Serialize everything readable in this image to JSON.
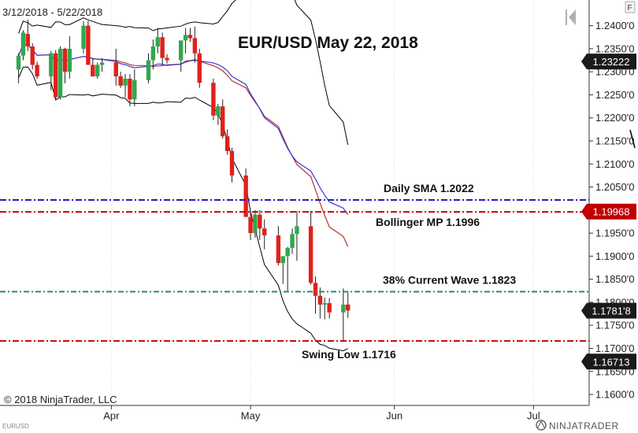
{
  "date_range": "3/12/2018 - 5/22/2018",
  "title": "EUR/USD May 22, 2018",
  "copyright": "© 2018 NinjaTrader, LLC",
  "instrument": "EURUSD",
  "brand": "NINJATRADER",
  "y_ticks": [
    "1.2400'0",
    "1.2350'0",
    "1.2300'0",
    "1.2250'0",
    "1.2200'0",
    "1.2150'0",
    "1.2100'0",
    "1.2050'0",
    "1.2000'0",
    "1.1950'0",
    "1.1900'0",
    "1.1850'0",
    "1.1800'0",
    "1.1750'0",
    "1.1700'0",
    "1.1650'0",
    "1.1600'0"
  ],
  "x_ticks": [
    "Apr",
    "May",
    "Jun",
    "Jul"
  ],
  "price_markers": [
    {
      "label": "1.23222",
      "value": 1.23222,
      "bg": "#1a1a1a"
    },
    {
      "label": "1.19968",
      "value": 1.19968,
      "bg": "#c00000"
    },
    {
      "label": "1.1781'8",
      "value": 1.17818,
      "bg": "#1a1a1a"
    },
    {
      "label": "1.16713",
      "value": 1.16713,
      "bg": "#1a1a1a"
    }
  ],
  "levels": [
    {
      "label": "Daily SMA 1.2022",
      "value": 1.2022,
      "color": "#1f1fb4"
    },
    {
      "label": "Bollinger MP 1.1996",
      "value": 1.1996,
      "color": "#cc0000"
    },
    {
      "label": "38% Current Wave 1.1823",
      "value": 1.1823,
      "color": "#2e8b57"
    },
    {
      "label": "Swing Low 1.1716",
      "value": 1.1716,
      "color": "#cc0000"
    }
  ],
  "chart_data": {
    "type": "candlestick",
    "x": [
      "2018-03-12",
      "2018-03-13",
      "2018-03-14",
      "2018-03-15",
      "2018-03-16",
      "2018-03-19",
      "2018-03-20",
      "2018-03-21",
      "2018-03-22",
      "2018-03-23",
      "2018-03-26",
      "2018-03-27",
      "2018-03-28",
      "2018-03-29",
      "2018-03-30",
      "2018-04-02",
      "2018-04-03",
      "2018-04-04",
      "2018-04-05",
      "2018-04-06",
      "2018-04-09",
      "2018-04-10",
      "2018-04-11",
      "2018-04-12",
      "2018-04-13",
      "2018-04-16",
      "2018-04-17",
      "2018-04-18",
      "2018-04-19",
      "2018-04-20",
      "2018-04-23",
      "2018-04-24",
      "2018-04-25",
      "2018-04-26",
      "2018-04-27",
      "2018-04-30",
      "2018-05-01",
      "2018-05-02",
      "2018-05-03",
      "2018-05-04",
      "2018-05-07",
      "2018-05-08",
      "2018-05-09",
      "2018-05-10",
      "2018-05-11",
      "2018-05-14",
      "2018-05-15",
      "2018-05-16",
      "2018-05-17",
      "2018-05-18",
      "2018-05-21",
      "2018-05-22"
    ],
    "open": [
      1.2305,
      1.2335,
      1.2382,
      1.2355,
      1.2315,
      1.229,
      1.234,
      1.2245,
      1.235,
      1.23,
      1.235,
      1.24,
      1.2315,
      1.229,
      1.2315,
      1.232,
      1.229,
      1.227,
      1.2285,
      1.224,
      1.2282,
      1.2325,
      1.2355,
      1.2375,
      1.233,
      1.2325,
      1.2368,
      1.238,
      1.2373,
      1.234,
      1.2276,
      1.2205,
      1.2225,
      1.216,
      1.2128,
      1.2075,
      1.1985,
      1.195,
      1.199,
      1.196,
      1.1945,
      1.1885,
      1.19,
      1.1918,
      1.1948,
      1.1965,
      1.1842,
      1.1814,
      1.1795,
      1.1798,
      1.1778,
      1.1795
    ],
    "high": [
      1.234,
      1.239,
      1.2413,
      1.2362,
      1.2322,
      1.2345,
      1.2347,
      1.2355,
      1.2352,
      1.2377,
      1.241,
      1.241,
      1.233,
      1.232,
      1.233,
      1.235,
      1.23,
      1.2295,
      1.2295,
      1.2305,
      1.234,
      1.237,
      1.2395,
      1.2385,
      1.2338,
      1.236,
      1.2395,
      1.2395,
      1.2398,
      1.235,
      1.2285,
      1.223,
      1.224,
      1.2175,
      1.2135,
      1.209,
      1.2,
      1.2,
      1.2,
      1.198,
      1.1965,
      1.19,
      1.192,
      1.196,
      1.1998,
      1.1998,
      1.1856,
      1.1832,
      1.181,
      1.1809,
      1.183,
      1.1822
    ],
    "low": [
      1.2275,
      1.2325,
      1.2345,
      1.2305,
      1.2285,
      1.226,
      1.224,
      1.224,
      1.2275,
      1.2285,
      1.234,
      1.2315,
      1.229,
      1.2285,
      1.23,
      1.227,
      1.2265,
      1.2245,
      1.2225,
      1.2225,
      1.2275,
      1.2305,
      1.234,
      1.2315,
      1.2318,
      1.23,
      1.234,
      1.2365,
      1.232,
      1.2265,
      1.2195,
      1.2185,
      1.2155,
      1.212,
      1.206,
      1.199,
      1.1935,
      1.194,
      1.1935,
      1.1915,
      1.188,
      1.184,
      1.1825,
      1.1905,
      1.189,
      1.1838,
      1.1775,
      1.1765,
      1.1763,
      1.1765,
      1.1716,
      1.1766
    ],
    "close": [
      1.2335,
      1.2385,
      1.2355,
      1.2315,
      1.229,
      1.234,
      1.2245,
      1.235,
      1.23,
      1.235,
      1.24,
      1.2315,
      1.229,
      1.2315,
      1.232,
      1.229,
      1.227,
      1.2285,
      1.224,
      1.2282,
      1.2325,
      1.2355,
      1.2375,
      1.233,
      1.2325,
      1.2368,
      1.238,
      1.2373,
      1.234,
      1.2276,
      1.2205,
      1.2225,
      1.216,
      1.2128,
      1.2075,
      1.1985,
      1.195,
      1.199,
      1.196,
      1.1945,
      1.1885,
      1.19,
      1.1918,
      1.1948,
      1.1965,
      1.1842,
      1.1814,
      1.1795,
      1.1798,
      1.1778,
      1.1795,
      1.1782
    ],
    "ylim": [
      1.157,
      1.244
    ],
    "xlim": [
      "2018-03-08",
      "2018-07-13"
    ],
    "overlays": [
      "bollinger_upper",
      "bollinger_middle",
      "bollinger_lower",
      "sma_20",
      "sma_50"
    ],
    "colors": {
      "up": "#2fa84f",
      "down": "#e0211b",
      "bollinger": "#000000",
      "ma_red": "#b5352a",
      "ma_blue": "#3a3acf"
    }
  }
}
